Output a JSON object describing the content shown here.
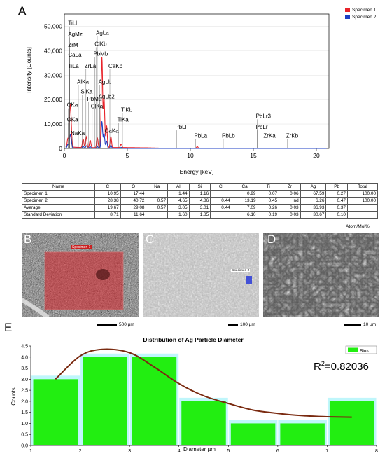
{
  "panels": {
    "a": "A",
    "b": "B",
    "c": "C",
    "d": "D",
    "e": "E"
  },
  "spectrum": {
    "type": "line",
    "xlabel": "Energy [keV]",
    "ylabel": "Intensity [Counts]",
    "xlim": [
      0,
      21
    ],
    "ylim": [
      0,
      55000
    ],
    "xticks": [
      "0",
      "5",
      "10",
      "15",
      "20"
    ],
    "yticks": [
      "0",
      "10,000",
      "20,000",
      "30,000",
      "40,000",
      "50,000"
    ],
    "legend": [
      {
        "name": "Specimen 1",
        "color": "#e8232a"
      },
      {
        "name": "Specimen 2",
        "color": "#1c3fc4"
      }
    ],
    "peaks": [
      {
        "e": 0.28,
        "s1": 3500,
        "s2": 1500
      },
      {
        "e": 0.45,
        "s1": 14000,
        "s2": 4000
      },
      {
        "e": 0.53,
        "s1": 8000,
        "s2": 3000
      },
      {
        "e": 1.49,
        "s1": 3500,
        "s2": 800
      },
      {
        "e": 1.74,
        "s1": 4500,
        "s2": 1000
      },
      {
        "e": 2.05,
        "s1": 3000,
        "s2": 600
      },
      {
        "e": 2.62,
        "s1": 4000,
        "s2": 700
      },
      {
        "e": 2.98,
        "s1": 37000,
        "s2": 11000
      },
      {
        "e": 3.15,
        "s1": 20000,
        "s2": 6000
      },
      {
        "e": 3.35,
        "s1": 9000,
        "s2": 3000
      },
      {
        "e": 3.69,
        "s1": 4500,
        "s2": 1200
      },
      {
        "e": 4.51,
        "s1": 1500,
        "s2": 400
      },
      {
        "e": 10.55,
        "s1": 800,
        "s2": 0
      }
    ],
    "labels": [
      {
        "text": "TiLl",
        "e": 0.3,
        "y": 50500
      },
      {
        "text": "AgMz",
        "e": 0.3,
        "y": 46000
      },
      {
        "text": "ZrM",
        "e": 0.3,
        "y": 41500
      },
      {
        "text": "CaLa",
        "e": 0.3,
        "y": 37500
      },
      {
        "text": "TiLa",
        "e": 0.3,
        "y": 33000
      },
      {
        "text": "AgLa",
        "e": 2.5,
        "y": 46500
      },
      {
        "text": "PbMb",
        "e": 2.3,
        "y": 38000
      },
      {
        "text": "ClKb",
        "e": 2.4,
        "y": 42000
      },
      {
        "text": "ZrLa",
        "e": 1.6,
        "y": 33000
      },
      {
        "text": "CaKb",
        "e": 3.5,
        "y": 33000
      },
      {
        "text": "AlKa",
        "e": 1.0,
        "y": 26500
      },
      {
        "text": "AgLb",
        "e": 2.7,
        "y": 26500
      },
      {
        "text": "SiKa",
        "e": 1.3,
        "y": 22500
      },
      {
        "text": "PbMa",
        "e": 1.8,
        "y": 19500
      },
      {
        "text": "AgLb2",
        "e": 2.7,
        "y": 20500
      },
      {
        "text": "ClKa",
        "e": 2.1,
        "y": 16500
      },
      {
        "text": "CKa",
        "e": 0.2,
        "y": 17000
      },
      {
        "text": "TiKb",
        "e": 4.5,
        "y": 15000
      },
      {
        "text": "TiKa",
        "e": 4.2,
        "y": 11000
      },
      {
        "text": "OKa",
        "e": 0.2,
        "y": 11000
      },
      {
        "text": "NaKa",
        "e": 0.5,
        "y": 5500
      },
      {
        "text": "CaKa",
        "e": 3.2,
        "y": 6500
      },
      {
        "text": "PbLl",
        "e": 8.8,
        "y": 8000
      },
      {
        "text": "PbLa",
        "e": 10.3,
        "y": 4500
      },
      {
        "text": "PbLb",
        "e": 12.5,
        "y": 4500
      },
      {
        "text": "PbLr3",
        "e": 15.2,
        "y": 12500
      },
      {
        "text": "PbLr",
        "e": 15.2,
        "y": 8000
      },
      {
        "text": "ZrKa",
        "e": 15.8,
        "y": 4500
      },
      {
        "text": "ZrKb",
        "e": 17.6,
        "y": 4500
      }
    ]
  },
  "composition": {
    "headers": [
      "Name",
      "C",
      "O",
      "Na",
      "Al",
      "Si",
      "Cl",
      "Ca",
      "Ti",
      "Zr",
      "Ag",
      "Pb",
      "Total"
    ],
    "rows": [
      [
        "Specimen 1",
        "10.95",
        "17.44",
        "",
        "1.44",
        "1.16",
        "",
        "0.99",
        "0.07",
        "0.06",
        "67.59",
        "0.27",
        "100.00"
      ],
      [
        "Specimen 2",
        "28.38",
        "40.72",
        "0.57",
        "4.65",
        "4.86",
        "0.44",
        "13.19",
        "0.45",
        "nd",
        "6.26",
        "0.47",
        "100.00"
      ],
      [
        "Average",
        "19.67",
        "29.08",
        "0.57",
        "3.05",
        "3.01",
        "0.44",
        "7.09",
        "0.26",
        "0.03",
        "36.93",
        "0.37",
        ""
      ],
      [
        "Standard Deviation",
        "8.71",
        "11.64",
        "",
        "1.60",
        "1.85",
        "",
        "6.10",
        "0.19",
        "0.03",
        "30.67",
        "0.10",
        ""
      ]
    ],
    "unit_note": "Atom/Mol%"
  },
  "micrographs": {
    "b": {
      "region_label": "Specimen 1",
      "scale": "500 µm"
    },
    "c": {
      "region_label": "Specimen 2",
      "scale": "100 µm"
    },
    "d": {
      "scale": "10 µm"
    }
  },
  "histogram": {
    "type": "bar",
    "title": "Distribution of Ag Particle Diameter",
    "xlabel": "Diameter µm",
    "ylabel": "Counts",
    "xlim": [
      1,
      8
    ],
    "ylim": [
      0,
      4.5
    ],
    "xticks": [
      "1",
      "2",
      "3",
      "4",
      "5",
      "6",
      "7",
      "8"
    ],
    "yticks": [
      "0.0",
      "0.5",
      "1.0",
      "1.5",
      "2.0",
      "2.5",
      "3.0",
      "3.5",
      "4.0",
      "4.5"
    ],
    "legend": "Bins",
    "r2_prefix": "R",
    "r2_sup": "2",
    "r2_value": "=0.82036",
    "bins": [
      {
        "center": 1.5,
        "value": 3
      },
      {
        "center": 2.5,
        "value": 4
      },
      {
        "center": 3.5,
        "value": 4
      },
      {
        "center": 4.5,
        "value": 2
      },
      {
        "center": 5.5,
        "value": 1
      },
      {
        "center": 6.5,
        "value": 1
      },
      {
        "center": 7.5,
        "value": 2
      }
    ],
    "fit": [
      [
        1.5,
        3.0
      ],
      [
        2.0,
        4.05
      ],
      [
        2.45,
        4.35
      ],
      [
        3.0,
        4.2
      ],
      [
        3.5,
        3.55
      ],
      [
        4.0,
        2.8
      ],
      [
        4.5,
        2.25
      ],
      [
        5.0,
        1.9
      ],
      [
        5.5,
        1.6
      ],
      [
        6.0,
        1.45
      ],
      [
        6.5,
        1.35
      ],
      [
        7.0,
        1.3
      ],
      [
        7.5,
        1.28
      ]
    ],
    "colors": {
      "bar": "#22ee11",
      "halo": "#bff6fb",
      "fit": "#7a2a10"
    }
  }
}
